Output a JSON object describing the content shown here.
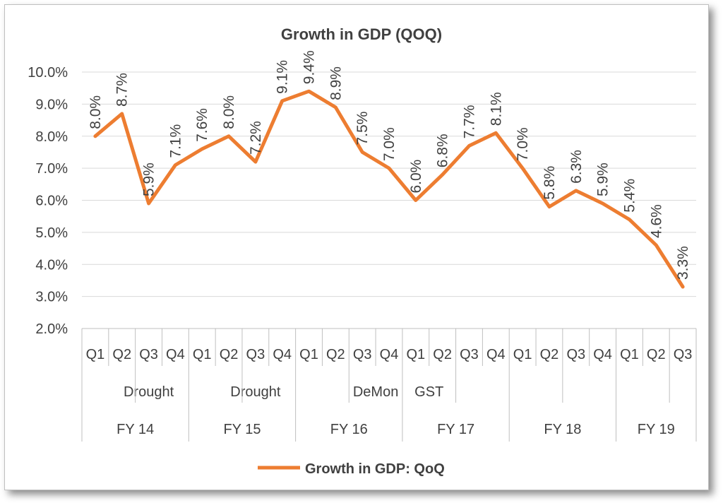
{
  "chart_data": {
    "type": "line",
    "title": "Growth in GDP (QOQ)",
    "ylim": [
      0.02,
      0.1
    ],
    "y_ticks": [
      "2.0%",
      "3.0%",
      "4.0%",
      "5.0%",
      "6.0%",
      "7.0%",
      "8.0%",
      "9.0%",
      "10.0%"
    ],
    "grid": true,
    "legend_position": "bottom",
    "x": [
      "Q1",
      "Q2",
      "Q3",
      "Q4",
      "Q1",
      "Q2",
      "Q3",
      "Q4",
      "Q1",
      "Q2",
      "Q3",
      "Q4",
      "Q1",
      "Q2",
      "Q3",
      "Q4",
      "Q1",
      "Q2",
      "Q3",
      "Q4",
      "Q1",
      "Q2",
      "Q3"
    ],
    "events": [
      {
        "label": "Drought",
        "index": 2
      },
      {
        "label": "Drought",
        "index": 6
      },
      {
        "label": "DeMon",
        "index": 10.5
      },
      {
        "label": "GST",
        "index": 12.5
      }
    ],
    "fiscal_years": [
      {
        "label": "FY 14",
        "start": 0,
        "end": 3
      },
      {
        "label": "FY 15",
        "start": 4,
        "end": 7
      },
      {
        "label": "FY 16",
        "start": 8,
        "end": 11
      },
      {
        "label": "FY 17",
        "start": 12,
        "end": 15
      },
      {
        "label": "FY 18",
        "start": 16,
        "end": 19
      },
      {
        "label": "FY 19",
        "start": 20,
        "end": 22
      }
    ],
    "series": [
      {
        "name": "Growth in GDP: QoQ",
        "color": "#ED7D31",
        "values": [
          0.08,
          0.087,
          0.059,
          0.071,
          0.076,
          0.08,
          0.072,
          0.091,
          0.094,
          0.089,
          0.075,
          0.07,
          0.06,
          0.068,
          0.077,
          0.081,
          0.07,
          0.058,
          0.063,
          0.059,
          0.054,
          0.046,
          0.033
        ],
        "labels": [
          "8.0%",
          "8.7%",
          "5.9%",
          "7.1%",
          "7.6%",
          "8.0%",
          "7.2%",
          "9.1%",
          "9.4%",
          "8.9%",
          "7.5%",
          "7.0%",
          "6.0%",
          "6.8%",
          "7.7%",
          "8.1%",
          "7.0%",
          "5.8%",
          "6.3%",
          "5.9%",
          "5.4%",
          "4.6%",
          "3.3%"
        ]
      }
    ]
  }
}
